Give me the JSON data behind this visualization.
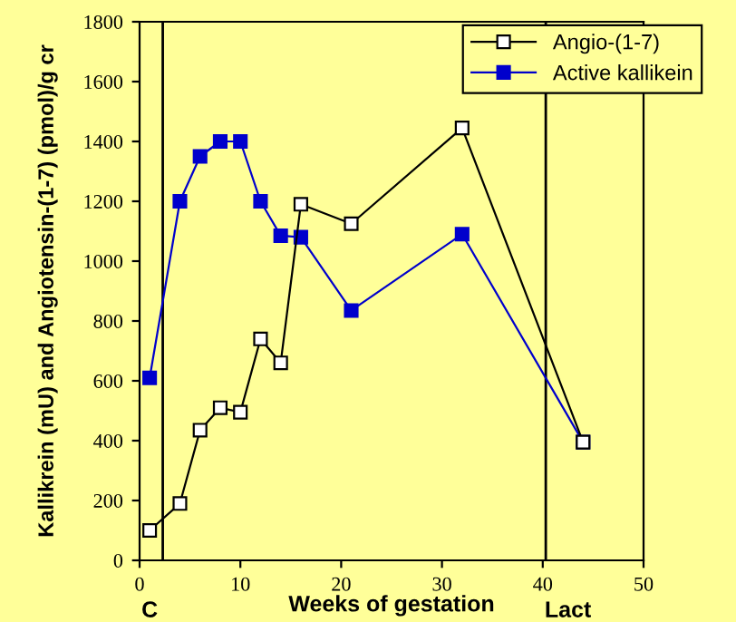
{
  "chart_data": {
    "type": "line",
    "xlabel": "Weeks of gestation",
    "ylabel": "Kallikrein (mU) and Angiotensin-(1-7) (pmol)/g cr",
    "x": [
      1,
      4,
      6,
      8,
      10,
      12,
      14,
      16,
      21,
      32,
      44
    ],
    "series": [
      {
        "name": "Angio-(1-7)",
        "color": "#000000",
        "marker": "square",
        "values": [
          100,
          190,
          435,
          510,
          495,
          740,
          660,
          1190,
          1125,
          1445,
          395
        ]
      },
      {
        "name": "Active kallikein",
        "color": "#0000cc",
        "marker": "square",
        "values": [
          610,
          1200,
          1350,
          1400,
          1400,
          1200,
          1085,
          1080,
          835,
          1090,
          395
        ]
      }
    ],
    "xlim": [
      0,
      50
    ],
    "xticks": [
      0,
      10,
      20,
      30,
      40,
      50
    ],
    "ylim": [
      0,
      1800
    ],
    "yticks": [
      0,
      200,
      400,
      600,
      800,
      1000,
      1200,
      1400,
      1600,
      1800
    ],
    "ref_lines": [
      {
        "axis": "x",
        "value": 2.3,
        "color": "#000000"
      },
      {
        "axis": "x",
        "value": 40.3,
        "color": "#000000"
      }
    ],
    "annotations": [
      "C",
      "Lact"
    ],
    "grid": false,
    "legend": "top right",
    "line_style": "solid"
  }
}
